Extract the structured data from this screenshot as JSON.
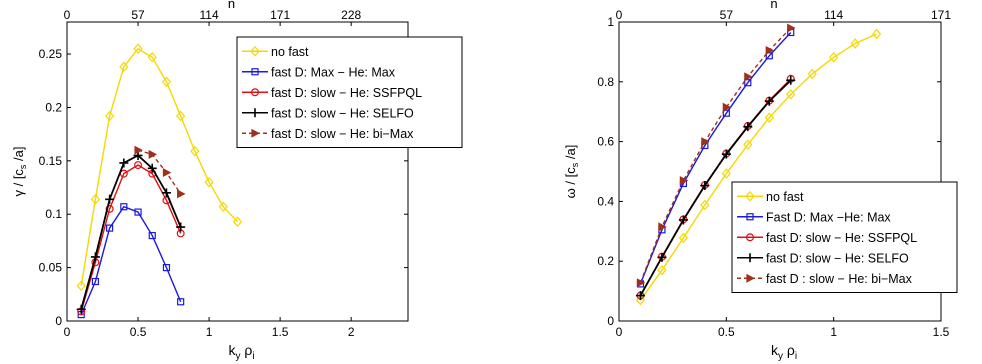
{
  "chart_data": [
    {
      "type": "line",
      "xlabel": "k",
      "xlabel_sub1": "y",
      "xlabel_mid": " ρ",
      "xlabel_sub2": "i",
      "ylabel": "γ / [c",
      "ylabel_sub": "s",
      "ylabel_end": " /a]",
      "top_label": "n",
      "xlim": [
        0,
        2.4
      ],
      "ylim": [
        0,
        0.28
      ],
      "xticks": [
        0,
        0.5,
        1,
        1.5,
        2
      ],
      "xtick_labels": [
        "0",
        "0.5",
        "1",
        "1.5",
        "2"
      ],
      "yticks": [
        0,
        0.05,
        0.1,
        0.15,
        0.2,
        0.25
      ],
      "ytick_labels": [
        "0",
        "0.05",
        "0.1",
        "0.15",
        "0.2",
        "0.25"
      ],
      "top_ticks": [
        0,
        0.5,
        1,
        1.5,
        2
      ],
      "top_tick_labels": [
        "0",
        "57",
        "114",
        "171",
        "228"
      ],
      "grid": false,
      "legend_position": "top-right",
      "series": [
        {
          "name": "no fast",
          "color": "#f5d800",
          "marker": "diamond",
          "dash": "",
          "x": [
            0.1,
            0.2,
            0.3,
            0.4,
            0.5,
            0.6,
            0.7,
            0.8,
            0.9,
            1.0,
            1.1,
            1.2
          ],
          "y": [
            0.033,
            0.114,
            0.192,
            0.238,
            0.255,
            0.247,
            0.224,
            0.192,
            0.159,
            0.13,
            0.107,
            0.093
          ]
        },
        {
          "name": "fast D: Max − He: Max",
          "color": "#1a1adc",
          "marker": "square",
          "dash": "",
          "x": [
            0.1,
            0.2,
            0.3,
            0.4,
            0.5,
            0.6,
            0.7,
            0.8
          ],
          "y": [
            0.006,
            0.037,
            0.087,
            0.107,
            0.102,
            0.08,
            0.05,
            0.018
          ]
        },
        {
          "name": "fast D: slow − He: SSFPQL",
          "color": "#e01010",
          "marker": "circle",
          "dash": "",
          "x": [
            0.1,
            0.2,
            0.3,
            0.4,
            0.5,
            0.6,
            0.7,
            0.8
          ],
          "y": [
            0.009,
            0.055,
            0.105,
            0.138,
            0.146,
            0.138,
            0.113,
            0.082
          ]
        },
        {
          "name": "fast D: slow − He: SELFO",
          "color": "#000000",
          "marker": "plus",
          "dash": "",
          "x": [
            0.1,
            0.2,
            0.3,
            0.4,
            0.5,
            0.6,
            0.7,
            0.8
          ],
          "y": [
            0.011,
            0.06,
            0.114,
            0.148,
            0.155,
            0.143,
            0.12,
            0.088
          ]
        },
        {
          "name": "fast D: slow − He: bi−Max",
          "color": "#a0301a",
          "marker": "triangle-right",
          "dash": "4,3",
          "x": [
            0.5,
            0.6,
            0.7,
            0.8
          ],
          "y": [
            0.16,
            0.156,
            0.139,
            0.119
          ]
        }
      ]
    },
    {
      "type": "line",
      "xlabel": "k",
      "xlabel_sub1": "y",
      "xlabel_mid": " ρ",
      "xlabel_sub2": "i",
      "ylabel": "ω / [c",
      "ylabel_sub": "s",
      "ylabel_end": " /a]",
      "top_label": "n",
      "xlim": [
        0,
        1.5
      ],
      "ylim": [
        0,
        1.0
      ],
      "xticks": [
        0,
        0.5,
        1,
        1.5
      ],
      "xtick_labels": [
        "0",
        "0.5",
        "1",
        "1.5"
      ],
      "yticks": [
        0,
        0.2,
        0.4,
        0.6,
        0.8,
        1
      ],
      "ytick_labels": [
        "0",
        "0.2",
        "0.4",
        "0.6",
        "0.8",
        "1"
      ],
      "top_ticks": [
        0,
        0.5,
        1,
        1.5
      ],
      "top_tick_labels": [
        "0",
        "57",
        "114",
        "171"
      ],
      "grid": false,
      "legend_position": "bottom-right",
      "series": [
        {
          "name": "no fast",
          "color": "#f5d800",
          "marker": "diamond",
          "dash": "",
          "x": [
            0.1,
            0.2,
            0.3,
            0.4,
            0.5,
            0.6,
            0.7,
            0.8,
            0.9,
            1.0,
            1.1,
            1.2
          ],
          "y": [
            0.07,
            0.17,
            0.278,
            0.388,
            0.493,
            0.59,
            0.68,
            0.758,
            0.826,
            0.882,
            0.928,
            0.96
          ]
        },
        {
          "name": "Fast D: Max −He: Max",
          "color": "#1a1adc",
          "marker": "square",
          "dash": "",
          "x": [
            0.1,
            0.2,
            0.3,
            0.4,
            0.5,
            0.6,
            0.7,
            0.8
          ],
          "y": [
            0.124,
            0.305,
            0.46,
            0.587,
            0.695,
            0.797,
            0.887,
            0.965
          ]
        },
        {
          "name": "fast D: slow − He: SSFPQL",
          "color": "#e01010",
          "marker": "circle",
          "dash": "",
          "x": [
            0.1,
            0.2,
            0.3,
            0.4,
            0.5,
            0.6,
            0.7,
            0.8
          ],
          "y": [
            0.085,
            0.215,
            0.34,
            0.455,
            0.56,
            0.652,
            0.737,
            0.81
          ]
        },
        {
          "name": "fast D: slow − He: SELFO",
          "color": "#000000",
          "marker": "plus",
          "dash": "",
          "x": [
            0.1,
            0.2,
            0.3,
            0.4,
            0.5,
            0.6,
            0.7,
            0.8
          ],
          "y": [
            0.085,
            0.213,
            0.338,
            0.453,
            0.558,
            0.65,
            0.735,
            0.805
          ]
        },
        {
          "name": "fast D : slow − He: bi−Max",
          "color": "#a0301a",
          "marker": "triangle-right",
          "dash": "4,3",
          "x": [
            0.1,
            0.2,
            0.3,
            0.4,
            0.5,
            0.6,
            0.7,
            0.8
          ],
          "y": [
            0.128,
            0.315,
            0.47,
            0.6,
            0.715,
            0.817,
            0.905,
            0.98
          ]
        }
      ]
    }
  ]
}
